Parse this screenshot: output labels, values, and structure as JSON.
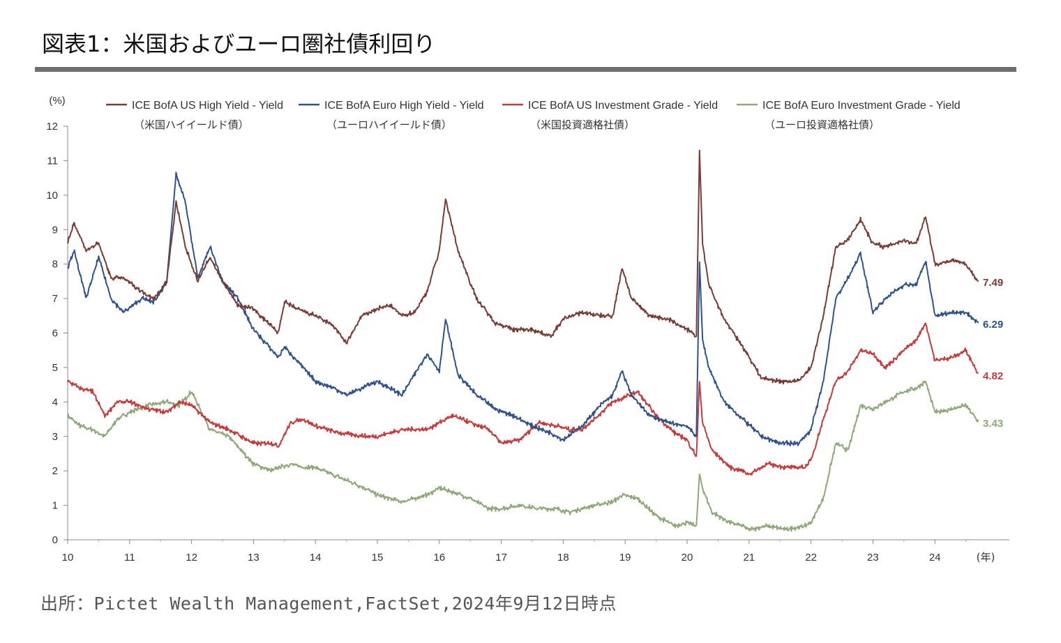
{
  "header": {
    "title": "図表1：米国およびユーロ圏社債利回り"
  },
  "footer": {
    "source": "出所：Pictet Wealth Management,FactSet,2024年9月12日時点"
  },
  "chart_data": {
    "type": "line",
    "ylabel": "(%)",
    "xlabel": "(年)",
    "ylim": [
      0,
      12
    ],
    "xlim": [
      2010,
      2025.2
    ],
    "y_ticks": [
      "0",
      "1",
      "2",
      "3",
      "4",
      "5",
      "6",
      "7",
      "8",
      "9",
      "10",
      "11",
      "12"
    ],
    "x_ticks": [
      "10",
      "11",
      "12",
      "13",
      "14",
      "15",
      "16",
      "17",
      "18",
      "19",
      "20",
      "21",
      "22",
      "23",
      "24"
    ],
    "legend_position": "top",
    "series": [
      {
        "name": "ICE BofA US High Yield - Yield",
        "sub": "（米国ハイイールド債）",
        "color": "#7b3b34",
        "end_label": "7.49",
        "x": [
          2010.0,
          2010.1,
          2010.3,
          2010.5,
          2010.7,
          2010.9,
          2011.2,
          2011.4,
          2011.6,
          2011.75,
          2011.9,
          2012.1,
          2012.3,
          2012.5,
          2012.75,
          2013.0,
          2013.4,
          2013.5,
          2013.7,
          2014.0,
          2014.3,
          2014.5,
          2014.75,
          2015.0,
          2015.2,
          2015.4,
          2015.6,
          2015.8,
          2016.0,
          2016.1,
          2016.3,
          2016.6,
          2016.9,
          2017.2,
          2017.5,
          2017.8,
          2018.0,
          2018.3,
          2018.6,
          2018.8,
          2018.95,
          2019.1,
          2019.4,
          2019.7,
          2020.0,
          2020.15,
          2020.2,
          2020.25,
          2020.35,
          2020.6,
          2020.9,
          2021.2,
          2021.5,
          2021.8,
          2022.0,
          2022.2,
          2022.4,
          2022.6,
          2022.8,
          2023.0,
          2023.2,
          2023.5,
          2023.7,
          2023.85,
          2024.0,
          2024.3,
          2024.5,
          2024.7
        ],
        "y": [
          8.6,
          9.2,
          8.4,
          8.6,
          7.6,
          7.6,
          7.2,
          7.0,
          7.5,
          9.8,
          8.5,
          7.5,
          8.2,
          7.5,
          6.8,
          6.7,
          6.0,
          6.9,
          6.7,
          6.5,
          6.2,
          5.7,
          6.5,
          6.7,
          6.8,
          6.5,
          6.6,
          7.2,
          8.4,
          9.9,
          8.4,
          7.0,
          6.3,
          6.1,
          6.1,
          5.9,
          6.4,
          6.6,
          6.5,
          6.5,
          7.9,
          7.0,
          6.5,
          6.4,
          6.1,
          5.9,
          11.3,
          8.6,
          7.4,
          6.4,
          5.6,
          4.7,
          4.6,
          4.6,
          5.0,
          6.5,
          8.5,
          8.7,
          9.3,
          8.6,
          8.5,
          8.7,
          8.6,
          9.4,
          8.0,
          8.1,
          8.0,
          7.49
        ]
      },
      {
        "name": "ICE BofA Euro High Yield - Yield",
        "sub": "（ユーロハイイールド債）",
        "color": "#2f528f",
        "end_label": "6.29",
        "x": [
          2010.0,
          2010.1,
          2010.3,
          2010.5,
          2010.7,
          2010.9,
          2011.2,
          2011.4,
          2011.6,
          2011.75,
          2011.9,
          2012.1,
          2012.3,
          2012.5,
          2012.75,
          2013.0,
          2013.4,
          2013.5,
          2013.7,
          2014.0,
          2014.3,
          2014.5,
          2014.75,
          2015.0,
          2015.2,
          2015.4,
          2015.6,
          2015.8,
          2016.0,
          2016.1,
          2016.3,
          2016.6,
          2016.9,
          2017.2,
          2017.5,
          2017.8,
          2018.0,
          2018.3,
          2018.6,
          2018.8,
          2018.95,
          2019.1,
          2019.4,
          2019.7,
          2020.0,
          2020.15,
          2020.2,
          2020.25,
          2020.35,
          2020.6,
          2020.9,
          2021.2,
          2021.5,
          2021.8,
          2022.0,
          2022.2,
          2022.4,
          2022.6,
          2022.8,
          2023.0,
          2023.2,
          2023.5,
          2023.7,
          2023.85,
          2024.0,
          2024.3,
          2024.5,
          2024.7
        ],
        "y": [
          7.9,
          8.4,
          7.0,
          8.2,
          7.0,
          6.6,
          7.0,
          6.9,
          7.5,
          10.6,
          9.8,
          7.6,
          8.5,
          7.5,
          7.0,
          6.1,
          5.3,
          5.6,
          5.2,
          4.6,
          4.4,
          4.2,
          4.4,
          4.6,
          4.4,
          4.2,
          4.8,
          5.4,
          4.9,
          6.4,
          4.8,
          4.2,
          3.8,
          3.6,
          3.3,
          3.1,
          2.9,
          3.3,
          3.9,
          4.2,
          4.9,
          4.2,
          3.6,
          3.4,
          3.3,
          3.0,
          8.1,
          5.8,
          5.0,
          4.0,
          3.5,
          3.0,
          2.8,
          2.8,
          3.2,
          4.6,
          7.0,
          7.6,
          8.3,
          6.6,
          7.0,
          7.4,
          7.4,
          8.1,
          6.5,
          6.6,
          6.6,
          6.29
        ]
      },
      {
        "name": "ICE BofA US Investment Grade - Yield",
        "sub": "（米国投資適格社債）",
        "color": "#c8393a",
        "end_label": "4.82",
        "x": [
          2010.0,
          2010.2,
          2010.4,
          2010.6,
          2010.8,
          2011.0,
          2011.3,
          2011.6,
          2011.8,
          2012.0,
          2012.3,
          2012.6,
          2012.8,
          2013.0,
          2013.3,
          2013.4,
          2013.6,
          2013.8,
          2014.0,
          2014.4,
          2014.8,
          2015.0,
          2015.4,
          2015.8,
          2016.0,
          2016.2,
          2016.5,
          2016.8,
          2017.0,
          2017.3,
          2017.6,
          2017.9,
          2018.1,
          2018.3,
          2018.5,
          2018.8,
          2018.95,
          2019.2,
          2019.5,
          2019.8,
          2020.0,
          2020.15,
          2020.2,
          2020.25,
          2020.4,
          2020.7,
          2020.9,
          2021.0,
          2021.3,
          2021.6,
          2021.9,
          2022.0,
          2022.2,
          2022.4,
          2022.6,
          2022.8,
          2023.0,
          2023.2,
          2023.5,
          2023.7,
          2023.85,
          2024.0,
          2024.3,
          2024.5,
          2024.7
        ],
        "y": [
          4.6,
          4.4,
          4.3,
          3.6,
          4.0,
          4.0,
          3.8,
          3.7,
          4.0,
          3.9,
          3.4,
          3.2,
          3.0,
          2.8,
          2.8,
          2.7,
          3.4,
          3.5,
          3.3,
          3.1,
          3.0,
          3.0,
          3.2,
          3.2,
          3.4,
          3.6,
          3.4,
          3.2,
          2.8,
          2.9,
          3.4,
          3.3,
          3.2,
          3.2,
          3.5,
          4.0,
          4.1,
          4.3,
          3.6,
          3.1,
          2.9,
          2.4,
          4.6,
          3.4,
          2.6,
          2.1,
          2.0,
          1.9,
          2.2,
          2.1,
          2.1,
          2.3,
          3.5,
          4.6,
          4.9,
          5.5,
          5.4,
          5.0,
          5.5,
          5.8,
          6.3,
          5.2,
          5.3,
          5.5,
          4.82
        ]
      },
      {
        "name": "ICE BofA Euro Investment Grade - Yield",
        "sub": "（ユーロ投資適格社債）",
        "color": "#8fa878",
        "end_label": "3.43",
        "x": [
          2010.0,
          2010.2,
          2010.4,
          2010.6,
          2010.8,
          2011.0,
          2011.3,
          2011.6,
          2011.8,
          2012.0,
          2012.3,
          2012.6,
          2012.8,
          2013.0,
          2013.3,
          2013.4,
          2013.6,
          2013.8,
          2014.0,
          2014.4,
          2014.8,
          2015.0,
          2015.4,
          2015.8,
          2016.0,
          2016.2,
          2016.5,
          2016.8,
          2017.0,
          2017.3,
          2017.6,
          2017.9,
          2018.1,
          2018.3,
          2018.5,
          2018.8,
          2018.95,
          2019.2,
          2019.5,
          2019.8,
          2020.0,
          2020.15,
          2020.2,
          2020.25,
          2020.4,
          2020.7,
          2020.9,
          2021.0,
          2021.3,
          2021.6,
          2021.9,
          2022.0,
          2022.2,
          2022.4,
          2022.6,
          2022.8,
          2023.0,
          2023.2,
          2023.5,
          2023.7,
          2023.85,
          2024.0,
          2024.3,
          2024.5,
          2024.7
        ],
        "y": [
          3.6,
          3.3,
          3.2,
          3.0,
          3.5,
          3.7,
          3.9,
          4.0,
          3.9,
          4.3,
          3.2,
          3.0,
          2.6,
          2.2,
          2.0,
          2.1,
          2.2,
          2.1,
          2.1,
          1.8,
          1.5,
          1.3,
          1.1,
          1.3,
          1.5,
          1.4,
          1.2,
          0.9,
          0.9,
          1.0,
          0.9,
          0.9,
          0.8,
          0.9,
          1.0,
          1.1,
          1.3,
          1.2,
          0.7,
          0.4,
          0.5,
          0.4,
          1.9,
          1.5,
          0.8,
          0.5,
          0.4,
          0.3,
          0.4,
          0.3,
          0.4,
          0.5,
          1.2,
          2.8,
          2.6,
          3.9,
          3.8,
          4.0,
          4.3,
          4.4,
          4.6,
          3.7,
          3.8,
          3.9,
          3.43
        ]
      }
    ]
  }
}
